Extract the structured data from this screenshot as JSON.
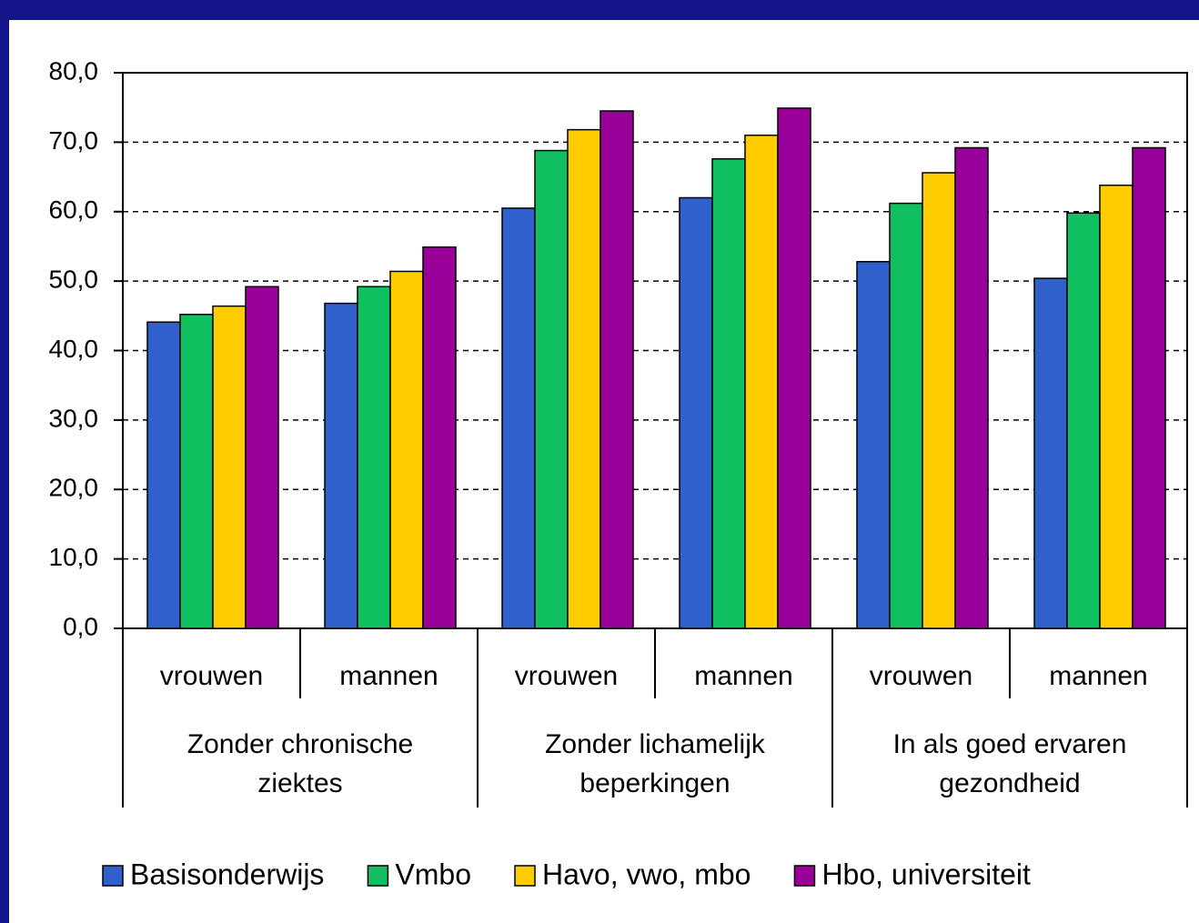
{
  "chart_data": {
    "type": "bar",
    "categories": [
      "vrouwen",
      "mannen",
      "vrouwen",
      "mannen",
      "vrouwen",
      "mannen"
    ],
    "groups": [
      [
        "Zonder chronische",
        "ziektes"
      ],
      [
        "Zonder lichamelijk",
        "beperkingen"
      ],
      [
        "In als goed ervaren",
        "gezondheid"
      ]
    ],
    "series": [
      {
        "name": "Basisonderwijs",
        "color": "#3060cc",
        "values": [
          44.1,
          46.8,
          60.5,
          62.0,
          52.8,
          50.4
        ]
      },
      {
        "name": "Vmbo",
        "color": "#10c060",
        "values": [
          45.2,
          49.2,
          68.8,
          67.6,
          61.2,
          59.8
        ]
      },
      {
        "name": "Havo, vwo, mbo",
        "color": "#ffcc00",
        "values": [
          46.4,
          51.4,
          71.8,
          71.0,
          65.6,
          63.8
        ]
      },
      {
        "name": "Hbo, universiteit",
        "color": "#990099",
        "values": [
          49.2,
          54.9,
          74.5,
          74.9,
          69.2,
          69.2
        ]
      }
    ],
    "ylim": [
      0,
      80
    ],
    "yticks": [
      {
        "value": 0,
        "label": "0,0"
      },
      {
        "value": 10,
        "label": "10,0"
      },
      {
        "value": 20,
        "label": "20,0"
      },
      {
        "value": 30,
        "label": "30,0"
      },
      {
        "value": 40,
        "label": "40,0"
      },
      {
        "value": 50,
        "label": "50,0"
      },
      {
        "value": 60,
        "label": "60,0"
      },
      {
        "value": 70,
        "label": "70,0"
      },
      {
        "value": 80,
        "label": "80,0"
      }
    ],
    "grid": true,
    "legend": "bottom"
  }
}
